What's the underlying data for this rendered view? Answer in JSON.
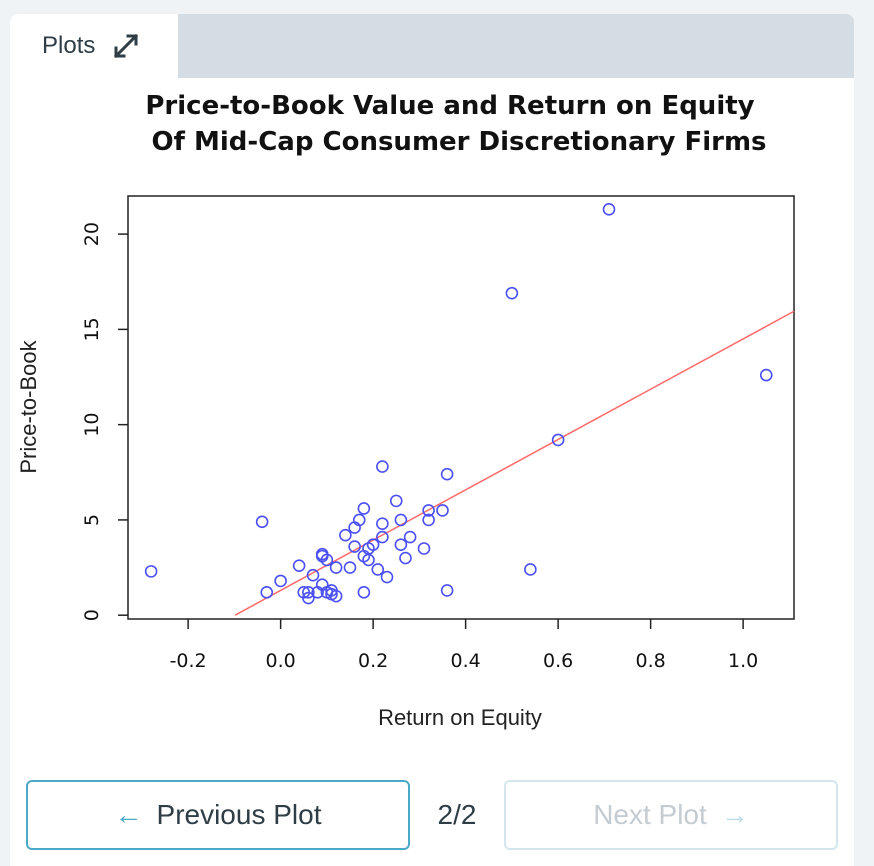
{
  "tab": {
    "label": "Plots",
    "icon": "expand-icon"
  },
  "navigation": {
    "prev_label": "Previous Plot",
    "next_label": "Next Plot",
    "page_indicator": "2/2",
    "prev_icon": "arrow-left-icon",
    "next_icon": "arrow-right-icon",
    "next_enabled": false
  },
  "colors": {
    "points": "#4a50f5",
    "regression_line": "#ff6a6a",
    "accent": "#4aa9c7",
    "tabbar": "#d3dde3"
  },
  "chart_data": {
    "type": "scatter",
    "title": "Price-to-Book Value and Return on Equity\n  Of Mid-Cap Consumer Discretionary Firms",
    "xlabel": "Return on Equity",
    "ylabel": "Price-to-Book",
    "xlim": [
      -0.33,
      1.11
    ],
    "ylim": [
      -0.2,
      22.0
    ],
    "x_ticks": [
      -0.2,
      0.0,
      0.2,
      0.4,
      0.6,
      0.8,
      1.0
    ],
    "x_tick_labels": [
      "-0.2",
      "0.0",
      "0.2",
      "0.4",
      "0.6",
      "0.8",
      "1.0"
    ],
    "y_ticks": [
      0,
      5,
      10,
      15,
      20
    ],
    "y_tick_labels": [
      "0",
      "5",
      "10",
      "15",
      "20"
    ],
    "grid": false,
    "regression_line": {
      "intercept": 1.3,
      "slope": 13.2
    },
    "points": [
      {
        "x": -0.28,
        "y": 2.3
      },
      {
        "x": -0.04,
        "y": 4.9
      },
      {
        "x": -0.03,
        "y": 1.2
      },
      {
        "x": 0.0,
        "y": 1.8
      },
      {
        "x": 0.04,
        "y": 2.6
      },
      {
        "x": 0.05,
        "y": 1.2
      },
      {
        "x": 0.06,
        "y": 1.2
      },
      {
        "x": 0.06,
        "y": 0.9
      },
      {
        "x": 0.07,
        "y": 2.1
      },
      {
        "x": 0.08,
        "y": 1.2
      },
      {
        "x": 0.09,
        "y": 3.1
      },
      {
        "x": 0.09,
        "y": 3.2
      },
      {
        "x": 0.09,
        "y": 1.6
      },
      {
        "x": 0.1,
        "y": 1.2
      },
      {
        "x": 0.1,
        "y": 2.9
      },
      {
        "x": 0.11,
        "y": 1.3
      },
      {
        "x": 0.11,
        "y": 1.1
      },
      {
        "x": 0.12,
        "y": 1.0
      },
      {
        "x": 0.12,
        "y": 2.5
      },
      {
        "x": 0.14,
        "y": 4.2
      },
      {
        "x": 0.15,
        "y": 2.5
      },
      {
        "x": 0.16,
        "y": 3.6
      },
      {
        "x": 0.16,
        "y": 4.6
      },
      {
        "x": 0.17,
        "y": 5.0
      },
      {
        "x": 0.18,
        "y": 3.1
      },
      {
        "x": 0.18,
        "y": 5.6
      },
      {
        "x": 0.19,
        "y": 3.5
      },
      {
        "x": 0.19,
        "y": 2.9
      },
      {
        "x": 0.18,
        "y": 1.2
      },
      {
        "x": 0.2,
        "y": 3.7
      },
      {
        "x": 0.21,
        "y": 2.4
      },
      {
        "x": 0.22,
        "y": 4.1
      },
      {
        "x": 0.22,
        "y": 4.8
      },
      {
        "x": 0.22,
        "y": 7.8
      },
      {
        "x": 0.23,
        "y": 2.0
      },
      {
        "x": 0.25,
        "y": 6.0
      },
      {
        "x": 0.26,
        "y": 5.0
      },
      {
        "x": 0.26,
        "y": 3.7
      },
      {
        "x": 0.27,
        "y": 3.0
      },
      {
        "x": 0.28,
        "y": 4.1
      },
      {
        "x": 0.31,
        "y": 3.5
      },
      {
        "x": 0.32,
        "y": 5.0
      },
      {
        "x": 0.32,
        "y": 5.5
      },
      {
        "x": 0.35,
        "y": 5.5
      },
      {
        "x": 0.36,
        "y": 1.3
      },
      {
        "x": 0.36,
        "y": 7.4
      },
      {
        "x": 0.5,
        "y": 16.9
      },
      {
        "x": 0.54,
        "y": 2.4
      },
      {
        "x": 0.6,
        "y": 9.2
      },
      {
        "x": 0.71,
        "y": 21.3
      },
      {
        "x": 1.05,
        "y": 12.6
      }
    ]
  }
}
